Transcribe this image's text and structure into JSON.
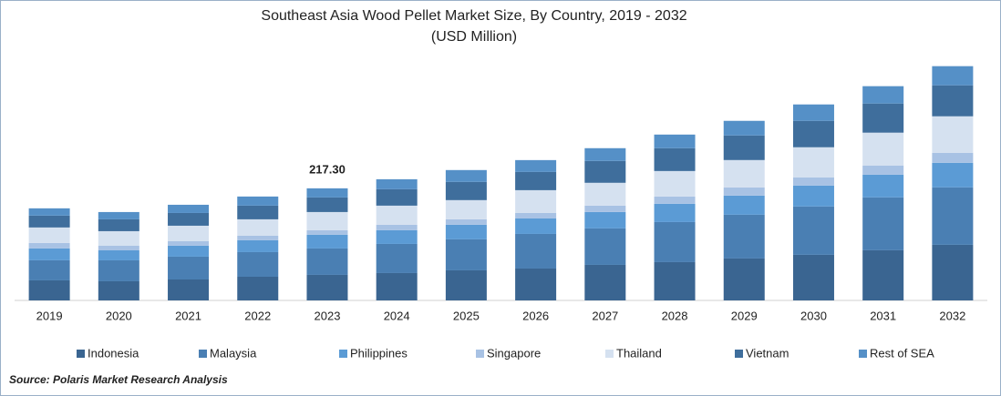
{
  "chart_data": {
    "type": "stacked_bar",
    "title": "Southeast Asia Wood Pellet Market Size, By Country, 2019 - 2032",
    "subtitle": "(USD Million)",
    "categories": [
      "2019",
      "2020",
      "2021",
      "2022",
      "2023",
      "2024",
      "2025",
      "2026",
      "2027",
      "2028",
      "2029",
      "2030",
      "2031",
      "2032"
    ],
    "series": [
      {
        "name": "Indonesia",
        "color": "#3a6591",
        "values": [
          38.9,
          37.1,
          40.6,
          45.9,
          49.5,
          53.0,
          58.3,
          61.8,
          68.9,
          74.2,
          81.3,
          88.4,
          97.2,
          107.8
        ]
      },
      {
        "name": "Malaysia",
        "color": "#4a7fb3",
        "values": [
          38.9,
          40.6,
          44.2,
          47.7,
          51.2,
          56.5,
          60.1,
          67.1,
          70.7,
          77.7,
          84.8,
          93.7,
          102.5,
          111.3
        ]
      },
      {
        "name": "Philippines",
        "color": "#5b9bd5",
        "values": [
          23.0,
          19.4,
          21.2,
          23.0,
          26.5,
          26.5,
          28.3,
          30.0,
          31.8,
          35.3,
          37.1,
          40.6,
          44.2,
          47.7
        ]
      },
      {
        "name": "Singapore",
        "color": "#a8c2e4",
        "values": [
          10.6,
          8.8,
          8.8,
          8.8,
          8.8,
          10.6,
          10.6,
          10.6,
          12.4,
          14.1,
          15.9,
          15.9,
          17.7,
          19.4
        ]
      },
      {
        "name": "Thailand",
        "color": "#d5e1f0",
        "values": [
          30.0,
          28.3,
          30.0,
          31.8,
          35.3,
          37.1,
          37.1,
          44.2,
          44.2,
          49.5,
          53.0,
          58.3,
          63.6,
          70.7
        ]
      },
      {
        "name": "Vietnam",
        "color": "#3f6e9c",
        "values": [
          23.0,
          23.0,
          24.7,
          26.5,
          28.3,
          31.8,
          35.3,
          35.3,
          42.4,
          44.2,
          47.7,
          51.2,
          56.5,
          60.1
        ]
      },
      {
        "name": "Rest of SEA",
        "color": "#5590c7",
        "values": [
          14.1,
          14.1,
          15.9,
          17.7,
          17.7,
          19.4,
          23.0,
          23.0,
          24.7,
          26.5,
          28.3,
          31.8,
          33.6,
          37.1
        ]
      }
    ],
    "annotations": [
      {
        "x": "2023",
        "text": "217.30"
      }
    ],
    "ylim": [
      0,
      480
    ],
    "source": "Source: Polaris  Market Research Analysis"
  }
}
